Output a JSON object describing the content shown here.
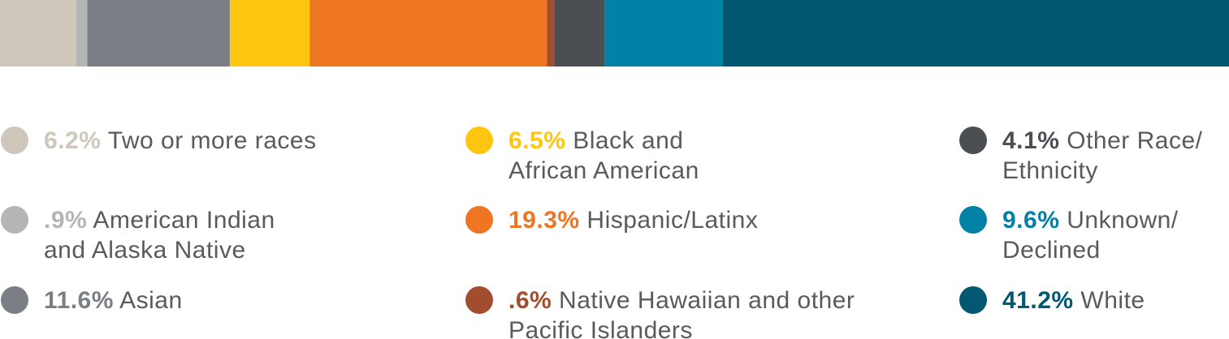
{
  "chart_data": {
    "type": "stacked-bar",
    "series": [
      {
        "name": "Two or more races",
        "color": "#cfc6bc",
        "values": [
          6.2
        ],
        "value_labels": [
          "6.2%"
        ]
      },
      {
        "name": "American Indian and Alaska Native",
        "color": "#b5b5b8",
        "values": [
          0.9
        ],
        "value_labels": [
          ".9%"
        ]
      },
      {
        "name": "Asian",
        "color": "#7b7f85",
        "values": [
          11.6
        ],
        "value_labels": [
          "11.6%"
        ]
      },
      {
        "name": "Black and African American",
        "color": "#fec60e",
        "values": [
          6.5
        ],
        "value_labels": [
          "6.5%"
        ]
      },
      {
        "name": "Hispanic/Latinx",
        "color": "#ee7623",
        "values": [
          19.3
        ],
        "value_labels": [
          "19.3%"
        ]
      },
      {
        "name": "Native Hawaiian and other Pacific Islanders",
        "color": "#a24e2e",
        "values": [
          0.6
        ],
        "value_labels": [
          ".6%"
        ]
      },
      {
        "name": "Other Race/ Ethnicity",
        "color": "#4b4e52",
        "values": [
          4.1
        ],
        "value_labels": [
          "4.1%"
        ]
      },
      {
        "name": "Unknown/ Declined",
        "color": "#0081a5",
        "values": [
          9.6
        ],
        "value_labels": [
          "9.6%"
        ]
      },
      {
        "name": "White",
        "color": "#015870",
        "values": [
          41.2
        ],
        "value_labels": [
          "41.2%"
        ]
      }
    ]
  }
}
